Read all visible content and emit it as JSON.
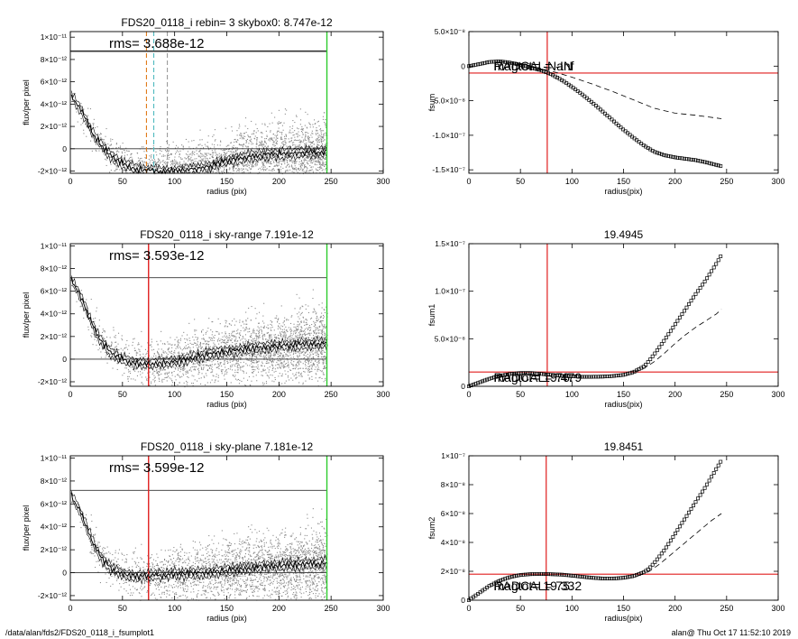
{
  "footer": {
    "left": "/data/alan/fds2/FDS20_0118_i_fsumplot1",
    "right": "alan@  Thu Oct 17 11:52:10 2019"
  },
  "colors": {
    "data": "#000000",
    "scatter": "#8a8a8a",
    "red": "#e01e1e",
    "green": "#2ecc2e",
    "orange": "#e07a1a",
    "cyan": "#4fb9bf"
  },
  "chart_data": [
    {
      "type": "scatter",
      "title": "FDS20_0118_i rebin= 3    skybox0:  8.747e-12",
      "annotation": "rms= 3.688e-12",
      "xlabel": "radius (pix)",
      "ylabel": "flux/per pixel",
      "xlim": [
        0,
        300
      ],
      "ylim": [
        -2.2e-12,
        1.05e-11
      ],
      "xticks": [
        0,
        50,
        100,
        150,
        200,
        250,
        300
      ],
      "xtick_labels": [
        "0",
        "50",
        "100",
        "150",
        "200",
        "250",
        "300"
      ],
      "yticks": [
        -2e-12,
        0,
        2e-12,
        4e-12,
        6e-12,
        8e-12,
        1e-11
      ],
      "ytick_labels": [
        "-2×10⁻¹²",
        "0",
        "2×10⁻¹²",
        "4×10⁻¹²",
        "6×10⁻¹²",
        "8×10⁻¹²",
        "1×10⁻¹¹"
      ],
      "hlines": [
        8.747e-12,
        0
      ],
      "vlines": [
        {
          "x": 246,
          "color": "green",
          "style": "solid"
        },
        {
          "x": 73,
          "color": "orange",
          "style": "dashed"
        },
        {
          "x": 80,
          "color": "cyan",
          "style": "dashed"
        },
        {
          "x": 93,
          "color": "gray",
          "style": "dashed"
        }
      ],
      "profile": {
        "x": [
          0,
          5,
          10,
          15,
          20,
          25,
          30,
          35,
          40,
          50,
          60,
          70,
          80,
          90,
          100,
          110,
          120,
          130,
          140,
          150,
          160,
          170,
          180,
          190,
          200,
          210,
          220,
          230,
          240,
          246
        ],
        "y": [
          4.8e-12,
          4.2e-12,
          3.5e-12,
          2.6e-12,
          1.6e-12,
          9e-13,
          3e-13,
          -3e-13,
          -7e-13,
          -1.3e-12,
          -1.7e-12,
          -1.9e-12,
          -2e-12,
          -2e-12,
          -2e-12,
          -1.9e-12,
          -1.8e-12,
          -1.6e-12,
          -1.4e-12,
          -1.1e-12,
          -9e-13,
          -7e-13,
          -6e-13,
          -5e-13,
          -5e-13,
          -4e-13,
          -4e-13,
          -3e-13,
          -3e-13,
          -2e-13
        ]
      },
      "scatter": {
        "center_x": [
          0,
          30,
          60,
          100,
          140,
          180,
          220,
          246
        ],
        "center_y": [
          5e-12,
          1e-13,
          -1.7e-12,
          -1.9e-12,
          -1.3e-12,
          -5e-13,
          -3e-13,
          -2e-13
        ],
        "spread": 2.2e-12
      }
    },
    {
      "type": "line",
      "title": "",
      "annotations": [
        "RADCAL=  -Inf",
        "magtot=  -NaN"
      ],
      "xlabel": "radius(pix)",
      "ylabel": "fsum",
      "xlim": [
        0,
        300
      ],
      "ylim": [
        -1.55e-07,
        5e-08
      ],
      "xticks": [
        0,
        50,
        100,
        150,
        200,
        250,
        300
      ],
      "xtick_labels": [
        "0",
        "50",
        "100",
        "150",
        "200",
        "250",
        "300"
      ],
      "yticks": [
        -1.5e-07,
        -1e-07,
        -5e-08,
        0,
        5e-08
      ],
      "ytick_labels": [
        "-1.5×10⁻⁷",
        "-1.0×10⁻⁷",
        "-5.0×10⁻⁸",
        "0",
        "5.0×10⁻⁸"
      ],
      "hline": -1e-08,
      "vline": 76,
      "series": [
        {
          "style": "markers",
          "x": [
            0,
            10,
            20,
            30,
            40,
            50,
            60,
            70,
            80,
            90,
            100,
            110,
            120,
            130,
            140,
            150,
            160,
            170,
            180,
            190,
            200,
            210,
            220,
            230,
            240,
            246
          ],
          "y": [
            0,
            3e-09,
            6e-09,
            7e-09,
            5e-09,
            2e-09,
            -2e-09,
            -6e-09,
            -1.2e-08,
            -2e-08,
            -3e-08,
            -4.1e-08,
            -5.3e-08,
            -6.6e-08,
            -7.9e-08,
            -9.2e-08,
            -1.04e-07,
            -1.15e-07,
            -1.24e-07,
            -1.29e-07,
            -1.32e-07,
            -1.34e-07,
            -1.36e-07,
            -1.39e-07,
            -1.43e-07,
            -1.45e-07
          ]
        },
        {
          "style": "dashed",
          "x": [
            30,
            60,
            80,
            100,
            120,
            140,
            160,
            180,
            200,
            220,
            245
          ],
          "y": [
            7e-09,
            0,
            -7e-09,
            -1.6e-08,
            -2.6e-08,
            -3.7e-08,
            -4.9e-08,
            -6.1e-08,
            -6.8e-08,
            -7.1e-08,
            -7.6e-08
          ]
        }
      ]
    },
    {
      "type": "scatter",
      "title": "FDS20_0118_i sky-range  7.191e-12",
      "annotation": "rms= 3.593e-12",
      "xlabel": "radius (pix)",
      "ylabel": "flux/per pixel",
      "xlim": [
        0,
        300
      ],
      "ylim": [
        -2.4e-12,
        1.02e-11
      ],
      "xticks": [
        0,
        50,
        100,
        150,
        200,
        250,
        300
      ],
      "xtick_labels": [
        "0",
        "50",
        "100",
        "150",
        "200",
        "250",
        "300"
      ],
      "yticks": [
        -2e-12,
        0,
        2e-12,
        4e-12,
        6e-12,
        8e-12,
        1e-11
      ],
      "ytick_labels": [
        "-2×10⁻¹²",
        "0",
        "2×10⁻¹²",
        "4×10⁻¹²",
        "6×10⁻¹²",
        "8×10⁻¹²",
        "1×10⁻¹¹"
      ],
      "hlines": [
        7.191e-12,
        0
      ],
      "vlines": [
        {
          "x": 246,
          "color": "green",
          "style": "solid"
        },
        {
          "x": 75,
          "color": "red",
          "style": "solid"
        }
      ],
      "profile": {
        "x": [
          0,
          5,
          10,
          15,
          20,
          25,
          30,
          40,
          50,
          60,
          70,
          80,
          90,
          100,
          110,
          120,
          130,
          140,
          150,
          160,
          170,
          180,
          190,
          200,
          210,
          220,
          230,
          240,
          246
        ],
        "y": [
          7e-12,
          6.4e-12,
          5.5e-12,
          4.4e-12,
          3.3e-12,
          2.3e-12,
          1.5e-12,
          5e-13,
          0,
          -3e-13,
          -4e-13,
          -4e-13,
          -3e-13,
          -2e-13,
          0,
          2e-13,
          4e-13,
          6e-13,
          7e-13,
          8e-13,
          9e-13,
          1e-12,
          1.1e-12,
          1.2e-12,
          1.2e-12,
          1.3e-12,
          1.3e-12,
          1.4e-12,
          1.4e-12
        ]
      },
      "scatter": {
        "center_x": [
          0,
          30,
          60,
          100,
          140,
          180,
          220,
          246
        ],
        "center_y": [
          7e-12,
          1.5e-12,
          -3e-13,
          -2e-13,
          6e-13,
          1e-12,
          1.3e-12,
          1.4e-12
        ],
        "spread": 2.4e-12
      }
    },
    {
      "type": "line",
      "title": "19.4945",
      "annotations": [
        "RADCAL=   76.",
        "magtot=  19.479"
      ],
      "xlabel": "radius(pix)",
      "ylabel": "fsum1",
      "xlim": [
        0,
        300
      ],
      "ylim": [
        0,
        1.5e-07
      ],
      "xticks": [
        0,
        50,
        100,
        150,
        200,
        250,
        300
      ],
      "xtick_labels": [
        "0",
        "50",
        "100",
        "150",
        "200",
        "250",
        "300"
      ],
      "yticks": [
        0,
        5e-08,
        1e-07,
        1.5e-07
      ],
      "ytick_labels": [
        "0",
        "5.0×10⁻⁸",
        "1.0×10⁻⁷",
        "1.5×10⁻⁷"
      ],
      "hline": 1.5e-08,
      "vline": 76,
      "series": [
        {
          "style": "markers",
          "x": [
            0,
            10,
            20,
            30,
            40,
            50,
            60,
            70,
            80,
            90,
            100,
            110,
            120,
            130,
            140,
            150,
            160,
            170,
            175,
            180,
            190,
            200,
            210,
            220,
            230,
            240,
            246
          ],
          "y": [
            0,
            4e-09,
            8e-09,
            1.1e-08,
            1.3e-08,
            1.4e-08,
            1.4e-08,
            1.3e-08,
            1.2e-08,
            1.1e-08,
            1.05e-08,
            1e-08,
            1e-08,
            1.02e-08,
            1.08e-08,
            1.2e-08,
            1.5e-08,
            2.1e-08,
            2.7e-08,
            3.4e-08,
            4.9e-08,
            6.5e-08,
            8.1e-08,
            9.7e-08,
            1.12e-07,
            1.29e-07,
            1.4e-07
          ]
        },
        {
          "style": "dashed",
          "x": [
            160,
            170,
            180,
            190,
            200,
            210,
            220,
            230,
            240,
            245
          ],
          "y": [
            1.5e-08,
            1.9e-08,
            2.6e-08,
            3.5e-08,
            4.5e-08,
            5.4e-08,
            6.2e-08,
            6.9e-08,
            7.6e-08,
            8.1e-08
          ]
        }
      ]
    },
    {
      "type": "scatter",
      "title": "FDS20_0118_i sky-plane  7.181e-12",
      "annotation": "rms= 3.599e-12",
      "xlabel": "radius (pix)",
      "ylabel": "flux/per pixel",
      "xlim": [
        0,
        300
      ],
      "ylim": [
        -2.4e-12,
        1.02e-11
      ],
      "xticks": [
        0,
        50,
        100,
        150,
        200,
        250,
        300
      ],
      "xtick_labels": [
        "0",
        "50",
        "100",
        "150",
        "200",
        "250",
        "300"
      ],
      "yticks": [
        -2e-12,
        0,
        2e-12,
        4e-12,
        6e-12,
        8e-12,
        1e-11
      ],
      "ytick_labels": [
        "-2×10⁻¹²",
        "0",
        "2×10⁻¹²",
        "4×10⁻¹²",
        "6×10⁻¹²",
        "8×10⁻¹²",
        "1×10⁻¹¹"
      ],
      "hlines": [
        7.181e-12,
        0
      ],
      "vlines": [
        {
          "x": 246,
          "color": "green",
          "style": "solid"
        },
        {
          "x": 75,
          "color": "red",
          "style": "solid"
        }
      ],
      "profile": {
        "x": [
          0,
          5,
          10,
          15,
          20,
          25,
          30,
          40,
          50,
          60,
          70,
          80,
          90,
          100,
          110,
          120,
          130,
          140,
          150,
          160,
          170,
          180,
          190,
          200,
          210,
          220,
          230,
          240,
          246
        ],
        "y": [
          6.8e-12,
          6.1e-12,
          5.2e-12,
          4.1e-12,
          3e-12,
          2e-12,
          1.2e-12,
          3e-13,
          -1e-13,
          -3e-13,
          -3e-13,
          -2e-13,
          -2e-13,
          -1e-13,
          -1e-13,
          0,
          0,
          1e-13,
          2e-13,
          3e-13,
          4e-13,
          5e-13,
          6e-13,
          6e-13,
          7e-13,
          7e-13,
          8e-13,
          8e-13,
          9e-13
        ]
      },
      "scatter": {
        "center_x": [
          0,
          30,
          60,
          100,
          140,
          180,
          220,
          246
        ],
        "center_y": [
          6.8e-12,
          1.2e-12,
          -3e-13,
          -1e-13,
          1e-13,
          5e-13,
          7e-13,
          9e-13
        ],
        "spread": 2.4e-12
      }
    },
    {
      "type": "line",
      "title": "19.8451",
      "annotations": [
        "RADCAL=   75.",
        "magtot=  19.332"
      ],
      "xlabel": "radius(pix)",
      "ylabel": "fsum2",
      "xlim": [
        0,
        300
      ],
      "ylim": [
        0,
        1e-07
      ],
      "xticks": [
        0,
        50,
        100,
        150,
        200,
        250,
        300
      ],
      "xtick_labels": [
        "0",
        "50",
        "100",
        "150",
        "200",
        "250",
        "300"
      ],
      "yticks": [
        0,
        2e-08,
        4e-08,
        6e-08,
        8e-08,
        1e-07
      ],
      "ytick_labels": [
        "0",
        "2×10⁻⁸",
        "4×10⁻⁸",
        "6×10⁻⁸",
        "8×10⁻⁸",
        "1×10⁻⁷"
      ],
      "hline": 1.8e-08,
      "vline": 75,
      "series": [
        {
          "style": "markers",
          "x": [
            0,
            10,
            20,
            30,
            40,
            50,
            60,
            70,
            80,
            90,
            100,
            110,
            120,
            130,
            140,
            150,
            160,
            170,
            175,
            180,
            190,
            200,
            210,
            220,
            230,
            240,
            246
          ],
          "y": [
            0,
            5e-09,
            1e-08,
            1.35e-08,
            1.6e-08,
            1.75e-08,
            1.8e-08,
            1.82e-08,
            1.8e-08,
            1.77e-08,
            1.7e-08,
            1.62e-08,
            1.55e-08,
            1.5e-08,
            1.5e-08,
            1.55e-08,
            1.68e-08,
            1.95e-08,
            2.2e-08,
            2.6e-08,
            3.5e-08,
            4.6e-08,
            5.7e-08,
            6.8e-08,
            7.9e-08,
            9.1e-08,
            9.8e-08
          ]
        },
        {
          "style": "dashed",
          "x": [
            165,
            175,
            185,
            195,
            205,
            215,
            225,
            235,
            245
          ],
          "y": [
            1.7e-08,
            2e-08,
            2.5e-08,
            3.1e-08,
            3.7e-08,
            4.3e-08,
            4.9e-08,
            5.5e-08,
            6e-08
          ]
        }
      ]
    }
  ]
}
